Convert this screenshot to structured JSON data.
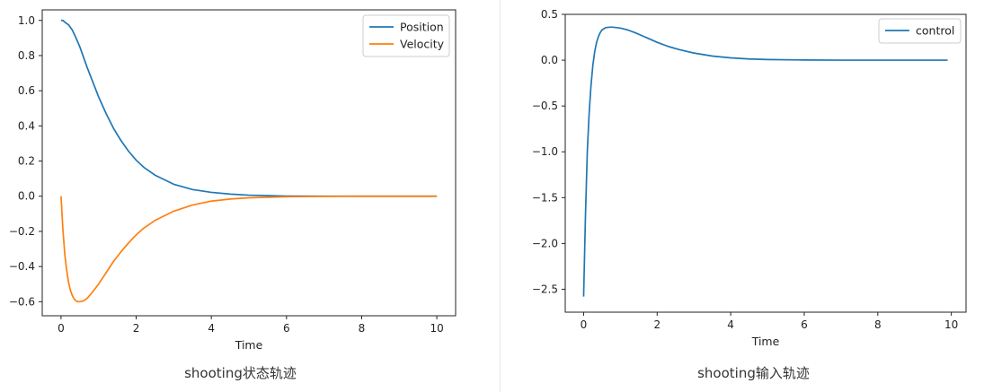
{
  "captions": {
    "left": "shooting状态轨迹",
    "right": "shooting输入轨迹"
  },
  "chart_data": [
    {
      "type": "line",
      "xlabel": "Time",
      "ylabel": "",
      "xlim": [
        -0.5,
        10.5
      ],
      "ylim": [
        -0.68,
        1.06
      ],
      "xticks": [
        0,
        2,
        4,
        6,
        8,
        10
      ],
      "yticks": [
        -0.6,
        -0.4,
        -0.2,
        0.0,
        0.2,
        0.4,
        0.6,
        0.8,
        1.0
      ],
      "xtick_labels": [
        "0",
        "2",
        "4",
        "6",
        "8",
        "10"
      ],
      "ytick_labels": [
        "−0.6",
        "−0.4",
        "−0.2",
        "0.0",
        "0.2",
        "0.4",
        "0.6",
        "0.8",
        "1.0"
      ],
      "legend": "top-right",
      "grid": false,
      "series": [
        {
          "name": "Position",
          "color": "#1f77b4",
          "x": [
            0,
            0.05,
            0.1,
            0.2,
            0.3,
            0.4,
            0.5,
            0.6,
            0.7,
            0.8,
            0.9,
            1.0,
            1.2,
            1.4,
            1.6,
            1.8,
            2.0,
            2.2,
            2.5,
            3.0,
            3.5,
            4.0,
            4.5,
            5.0,
            5.5,
            6.0,
            7.0,
            8.0,
            9.0,
            10.0
          ],
          "y": [
            1.0,
            1.0,
            0.99,
            0.975,
            0.945,
            0.9,
            0.85,
            0.79,
            0.73,
            0.675,
            0.62,
            0.565,
            0.47,
            0.385,
            0.315,
            0.255,
            0.205,
            0.165,
            0.12,
            0.068,
            0.038,
            0.022,
            0.012,
            0.006,
            0.003,
            0.001,
            0.0,
            0.0,
            0.0,
            0.0
          ]
        },
        {
          "name": "Velocity",
          "color": "#ff7f0e",
          "x": [
            0,
            0.05,
            0.1,
            0.15,
            0.2,
            0.25,
            0.3,
            0.35,
            0.4,
            0.45,
            0.5,
            0.55,
            0.6,
            0.65,
            0.7,
            0.8,
            1.0,
            1.2,
            1.4,
            1.6,
            1.8,
            2.0,
            2.2,
            2.5,
            3.0,
            3.5,
            4.0,
            4.5,
            5.0,
            6.0,
            7.0,
            8.0,
            9.0,
            10.0
          ],
          "y": [
            0.0,
            -0.19,
            -0.33,
            -0.42,
            -0.49,
            -0.535,
            -0.565,
            -0.585,
            -0.595,
            -0.6,
            -0.6,
            -0.598,
            -0.595,
            -0.588,
            -0.58,
            -0.555,
            -0.5,
            -0.435,
            -0.37,
            -0.315,
            -0.265,
            -0.22,
            -0.182,
            -0.138,
            -0.085,
            -0.05,
            -0.028,
            -0.016,
            -0.009,
            -0.003,
            -0.001,
            0.0,
            0.0,
            0.0
          ]
        }
      ]
    },
    {
      "type": "line",
      "xlabel": "Time",
      "ylabel": "",
      "xlim": [
        -0.5,
        10.4
      ],
      "ylim": [
        -2.75,
        0.5
      ],
      "xticks": [
        0,
        2,
        4,
        6,
        8,
        10
      ],
      "yticks": [
        -2.5,
        -2.0,
        -1.5,
        -1.0,
        -0.5,
        0.0,
        0.5
      ],
      "xtick_labels": [
        "0",
        "2",
        "4",
        "6",
        "8",
        "10"
      ],
      "ytick_labels": [
        "−2.5",
        "−2.0",
        "−1.5",
        "−1.0",
        "−0.5",
        "0.0",
        "0.5"
      ],
      "legend": "top-right",
      "grid": false,
      "series": [
        {
          "name": "control",
          "color": "#1f77b4",
          "x": [
            0,
            0.05,
            0.1,
            0.15,
            0.2,
            0.25,
            0.3,
            0.35,
            0.4,
            0.45,
            0.5,
            0.6,
            0.7,
            0.8,
            0.9,
            1.0,
            1.1,
            1.2,
            1.4,
            1.6,
            1.8,
            2.0,
            2.3,
            2.6,
            3.0,
            3.5,
            4.0,
            4.5,
            5.0,
            6.0,
            7.0,
            8.0,
            9.0,
            9.9
          ],
          "y": [
            -2.58,
            -1.7,
            -1.0,
            -0.58,
            -0.28,
            -0.06,
            0.09,
            0.19,
            0.255,
            0.3,
            0.33,
            0.355,
            0.36,
            0.36,
            0.355,
            0.35,
            0.34,
            0.33,
            0.3,
            0.265,
            0.23,
            0.195,
            0.15,
            0.115,
            0.078,
            0.045,
            0.025,
            0.013,
            0.007,
            0.002,
            0.0,
            0.0,
            0.0,
            0.0
          ]
        }
      ]
    }
  ]
}
